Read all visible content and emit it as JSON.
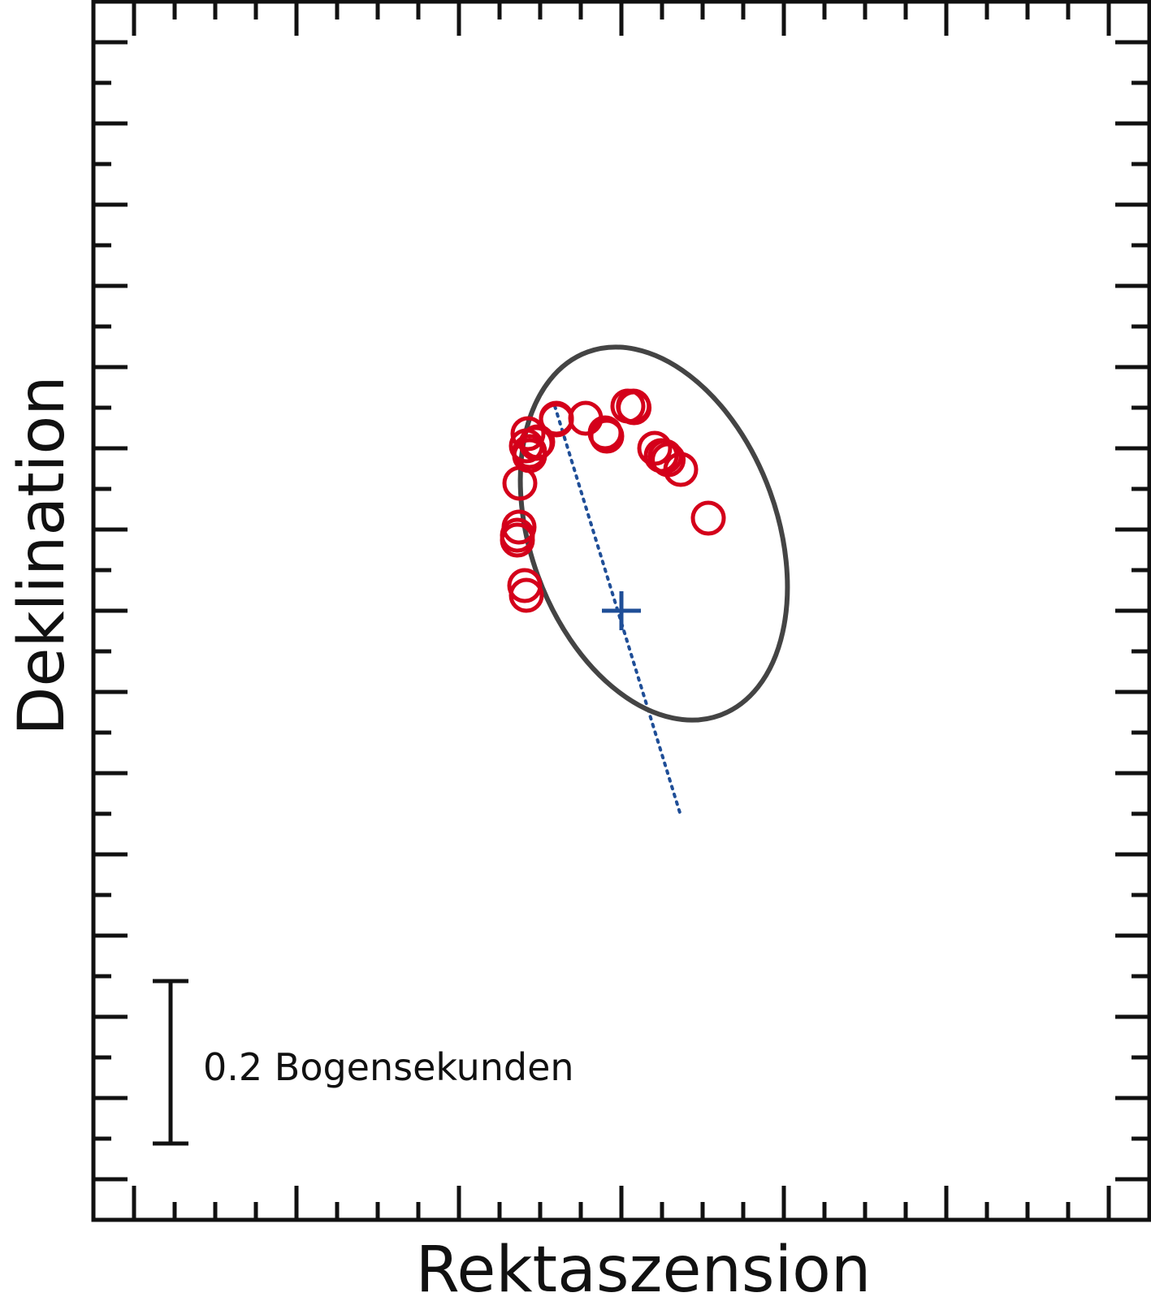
{
  "chart_data": {
    "type": "scatter",
    "title": "",
    "xlabel": "Rektaszension",
    "ylabel": "Deklination",
    "xlim": [
      -0.42,
      0.42
    ],
    "ylim": [
      -0.42,
      0.42
    ],
    "grid": false,
    "orbit": {
      "center": [
        0.04,
        0.095
      ],
      "semi_axes": [
        0.152,
        0.238
      ],
      "tilt_deg": 20,
      "color": "#444444"
    },
    "center_marker": {
      "x": 0.0,
      "y": 0.0,
      "color": "#1f4e97"
    },
    "axis_line": {
      "x": [
        -0.082,
        0.073
      ],
      "y": [
        0.252,
        -0.252
      ],
      "color": "#1f4e97"
    },
    "series": [
      {
        "color": "#d4001a",
        "x": [
          -0.08,
          -0.08,
          -0.044,
          -0.02,
          -0.018,
          0.008,
          0.0148,
          0.0156,
          0.041,
          0.049,
          0.054,
          0.0576,
          0.073,
          0.107,
          -0.117,
          -0.113,
          -0.115,
          -0.103,
          -0.105,
          -0.113,
          -0.125,
          -0.126,
          -0.128,
          -0.128,
          -0.119,
          -0.117
        ],
        "y": [
          0.237,
          0.235,
          0.237,
          0.219,
          0.215,
          0.252,
          0.252,
          0.25,
          0.2,
          0.191,
          0.19,
          0.186,
          0.174,
          0.114,
          0.203,
          0.196,
          0.218,
          0.208,
          0.206,
          0.191,
          0.157,
          0.103,
          0.093,
          0.087,
          0.031,
          0.019
        ]
      }
    ],
    "scale_bar": {
      "length": 0.2,
      "label": "0.2 Bogensekunden"
    }
  }
}
